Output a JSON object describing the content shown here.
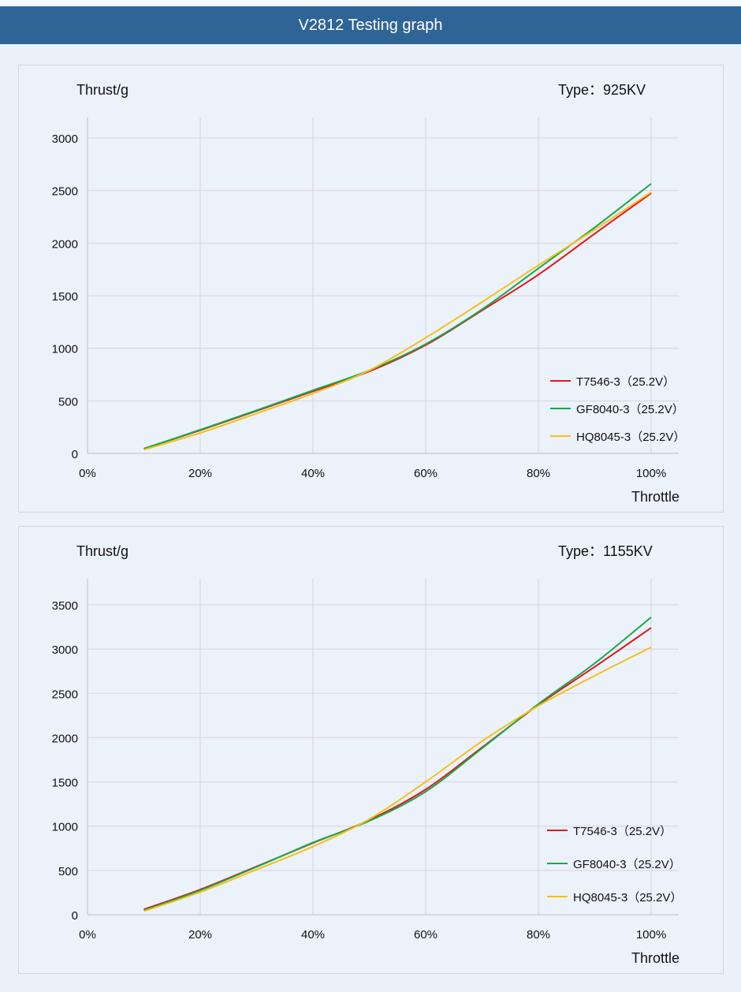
{
  "header": {
    "title": "V2812 Testing graph"
  },
  "colors": {
    "T7546": "#e8141b",
    "GF8040": "#17a84a",
    "HQ8045": "#f5c01a",
    "header": "#2f6496"
  },
  "chart_data": [
    {
      "type": "line",
      "ylabel": "Thrust/g",
      "xlabel": "Throttle",
      "type_label": "Type：925KV",
      "x": [
        10,
        20,
        30,
        40,
        50,
        60,
        70,
        80,
        90,
        100
      ],
      "xticks": [
        "0%",
        "20%",
        "40%",
        "60%",
        "80%",
        "100%"
      ],
      "xlim": [
        0,
        100
      ],
      "ylim": [
        0,
        3000
      ],
      "yticks": [
        0,
        500,
        1000,
        1500,
        2000,
        2500,
        3000
      ],
      "grid": true,
      "legend": "bottom-right",
      "series": [
        {
          "name": "T7546-3（25.2V）",
          "color": "#e8141b",
          "values": [
            45,
            220,
            405,
            590,
            780,
            1030,
            1360,
            1700,
            2090,
            2475
          ]
        },
        {
          "name": "GF8040-3（25.2V）",
          "color": "#17a84a",
          "values": [
            45,
            225,
            410,
            600,
            790,
            1040,
            1370,
            1760,
            2150,
            2565
          ]
        },
        {
          "name": "HQ8045-3（25.2V）",
          "color": "#f5c01a",
          "values": [
            35,
            195,
            380,
            570,
            790,
            1100,
            1440,
            1790,
            2130,
            2485
          ]
        }
      ]
    },
    {
      "type": "line",
      "ylabel": "Thrust/g",
      "xlabel": "Throttle",
      "type_label": "Type：1155KV",
      "x": [
        10,
        20,
        30,
        40,
        50,
        60,
        70,
        80,
        90,
        100
      ],
      "xticks": [
        "0%",
        "20%",
        "40%",
        "60%",
        "80%",
        "100%"
      ],
      "xlim": [
        0,
        100
      ],
      "ylim": [
        0,
        3500
      ],
      "yticks": [
        0,
        500,
        1000,
        1500,
        2000,
        2500,
        3000,
        3500
      ],
      "grid": true,
      "legend": "bottom-right",
      "series": [
        {
          "name": "T7546-3（25.2V）",
          "color": "#e8141b",
          "values": [
            60,
            285,
            545,
            810,
            1070,
            1415,
            1890,
            2370,
            2800,
            3240
          ]
        },
        {
          "name": "GF8040-3（25.2V）",
          "color": "#17a84a",
          "values": [
            50,
            275,
            540,
            815,
            1060,
            1390,
            1880,
            2380,
            2840,
            3360
          ]
        },
        {
          "name": "HQ8045-3（25.2V）",
          "color": "#f5c01a",
          "values": [
            40,
            255,
            510,
            770,
            1080,
            1500,
            1960,
            2360,
            2700,
            3020
          ]
        }
      ]
    }
  ]
}
